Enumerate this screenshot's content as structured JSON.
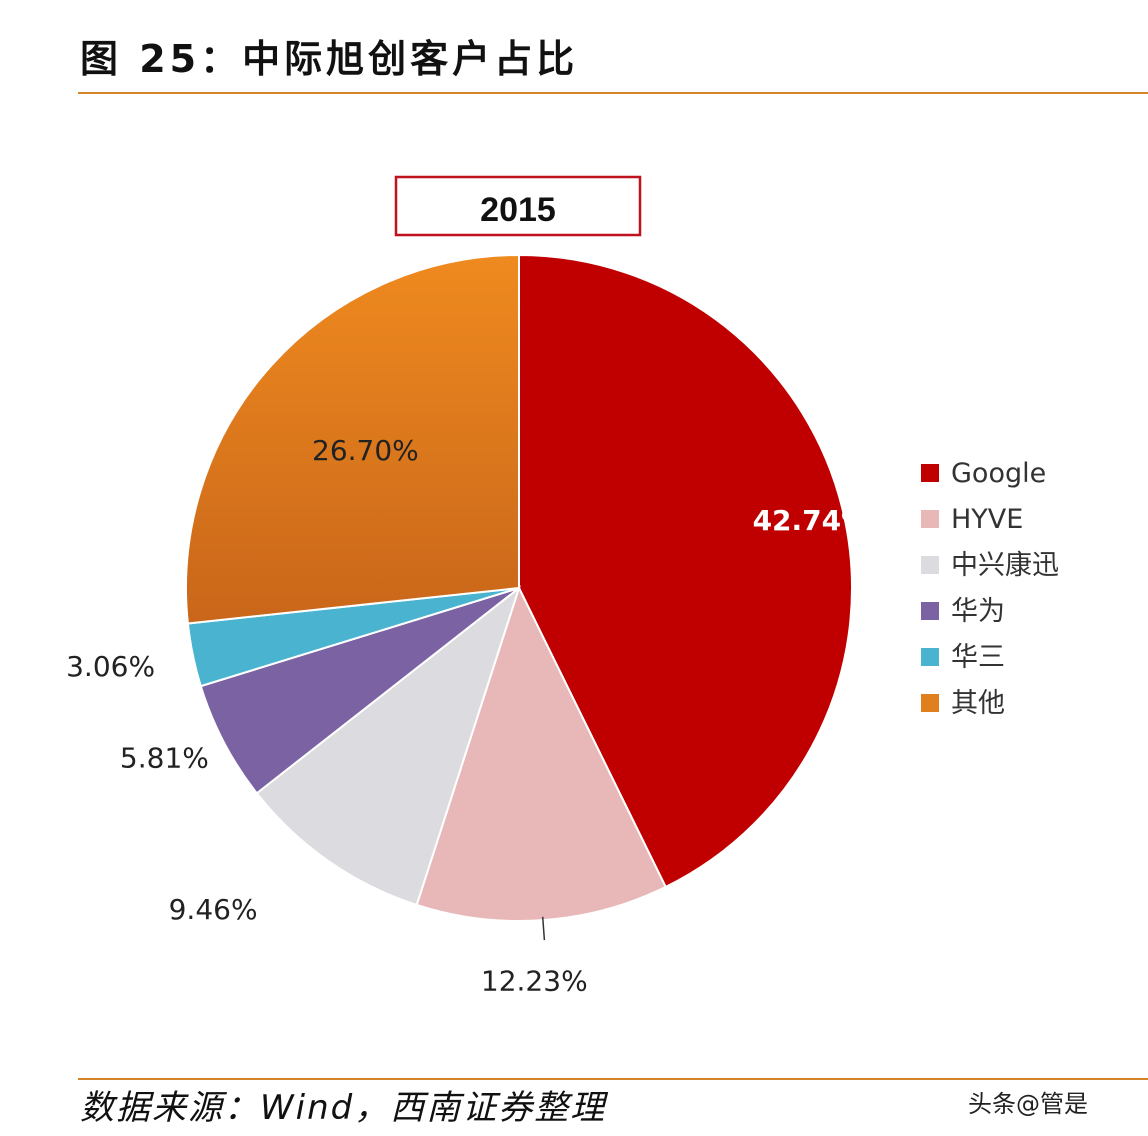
{
  "figure": {
    "title": "图 25：中际旭创客户占比",
    "source": "数据来源：Wind，西南证券整理",
    "watermark": "头条@管是"
  },
  "chart_data": {
    "type": "pie",
    "title": "2015",
    "categories": [
      "Google",
      "HYVE",
      "中兴康迅",
      "华为",
      "华三",
      "其他"
    ],
    "values": [
      42.74,
      12.23,
      9.46,
      5.81,
      3.06,
      26.7
    ],
    "labels": [
      "42.74%",
      "12.23%",
      "9.46%",
      "5.81%",
      "3.06%",
      "26.70%"
    ],
    "colors": [
      "#c00000",
      "#e8b8b8",
      "#dcdce0",
      "#7a62a3",
      "#4ab3cf",
      "#e07f1e"
    ],
    "start": "12 o'clock",
    "direction": "clockwise",
    "legend": "right"
  }
}
